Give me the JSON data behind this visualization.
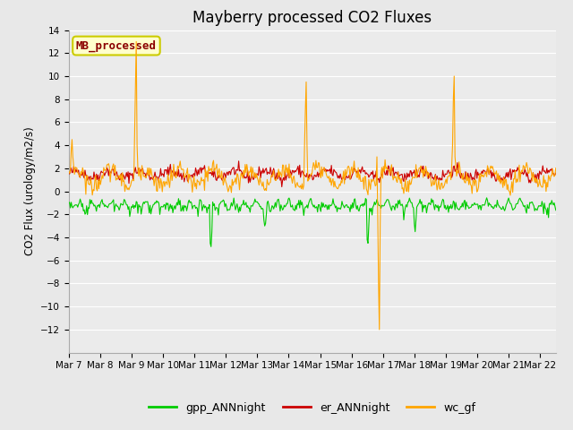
{
  "title": "Mayberry processed CO2 Fluxes",
  "ylabel": "CO2 Flux (urology/m2/s)",
  "ylim": [
    -14,
    14
  ],
  "yticks": [
    -12,
    -10,
    -8,
    -6,
    -4,
    -2,
    0,
    2,
    4,
    6,
    8,
    10,
    12,
    14
  ],
  "fig_bg_color": "#e8e8e8",
  "plot_bg_color": "#ebebeb",
  "grid_color": "#ffffff",
  "legend_label": "MB_processed",
  "legend_text_color": "#8b0000",
  "legend_box_color": "#ffffcc",
  "legend_box_edge": "#cccc00",
  "series": {
    "gpp_ANNnight": {
      "color": "#00cc00",
      "linewidth": 0.8
    },
    "er_ANNnight": {
      "color": "#cc0000",
      "linewidth": 0.8
    },
    "wc_gf": {
      "color": "#ffa500",
      "linewidth": 0.8
    }
  },
  "num_days": 15.5,
  "x_tick_labels": [
    "Mar 7",
    "Mar 8",
    "Mar 9",
    "Mar 10",
    "Mar 11",
    "Mar 12",
    "Mar 13",
    "Mar 14",
    "Mar 15",
    "Mar 16",
    "Mar 17",
    "Mar 18",
    "Mar 19",
    "Mar 20",
    "Mar 21",
    "Mar 22"
  ],
  "title_fontsize": 12,
  "tick_fontsize": 7.5,
  "label_fontsize": 8.5
}
